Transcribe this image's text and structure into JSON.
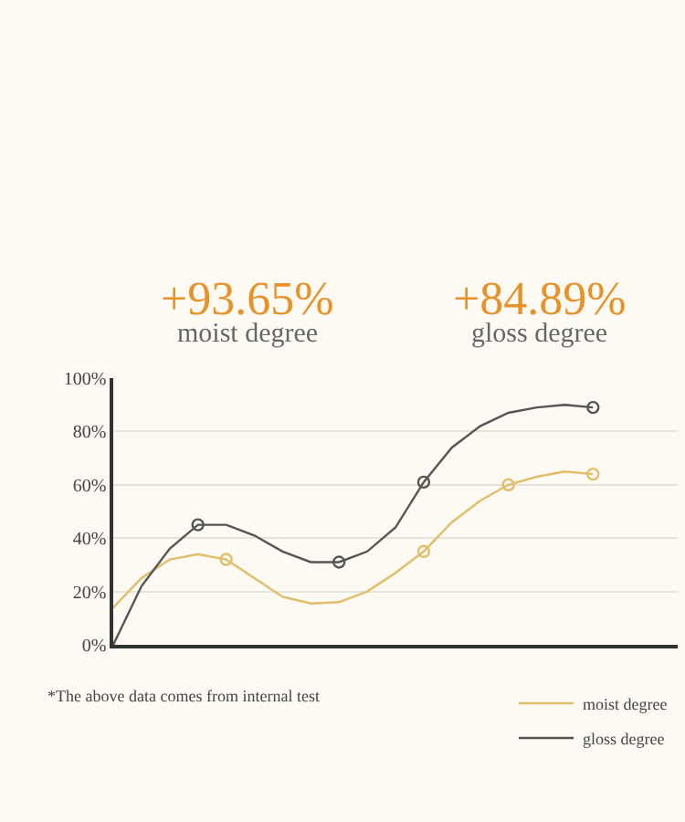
{
  "chart_data": {
    "type": "line",
    "annotations": [
      "+93.65%",
      "moist degree",
      "+84.89%",
      "gloss degree",
      "*The above data comes from internal test"
    ],
    "categories": [
      null,
      null,
      null,
      null,
      null,
      null,
      null,
      null,
      null,
      null,
      null,
      null,
      null,
      null,
      null,
      null,
      null,
      null,
      null,
      null,
      null
    ],
    "ylim": [
      0,
      100
    ],
    "yticks": [
      {
        "value": 0,
        "label": "0%"
      },
      {
        "value": 20,
        "label": "20%"
      },
      {
        "value": 40,
        "label": "40%"
      },
      {
        "value": 60,
        "label": "60%"
      },
      {
        "value": 80,
        "label": "80%"
      },
      {
        "value": 100,
        "label": "100%"
      }
    ],
    "tick_labels": "y",
    "grid": "y",
    "legend": "bottom right",
    "line_style": "solid",
    "series": [
      {
        "name": "moist degree",
        "color": "#e2bd6a",
        "marker": "none",
        "values": [
          14,
          25,
          32,
          34,
          32,
          25,
          18,
          15.5,
          16,
          20,
          27,
          35,
          46,
          54,
          60,
          63,
          65,
          64,
          null,
          null,
          null
        ]
      },
      {
        "name": "gloss degree",
        "color": "#555555",
        "marker": "none",
        "values": [
          0,
          22,
          36,
          45,
          45,
          41,
          35,
          31,
          31,
          35,
          44,
          61,
          74,
          82,
          87,
          89,
          90,
          89,
          null,
          null,
          null
        ]
      },
      {
        "type": "scatter",
        "color": "#e2bd6a",
        "marker": "circle",
        "values": [
          null,
          null,
          null,
          null,
          32,
          null,
          null,
          null,
          null,
          null,
          null,
          35,
          null,
          null,
          60,
          null,
          null,
          64,
          null,
          null,
          null
        ]
      },
      {
        "type": "scatter",
        "color": "#555555",
        "marker": "circle",
        "values": [
          null,
          null,
          null,
          45,
          null,
          null,
          null,
          null,
          31,
          null,
          null,
          61,
          null,
          null,
          null,
          null,
          null,
          89,
          null,
          null,
          null
        ]
      }
    ]
  }
}
